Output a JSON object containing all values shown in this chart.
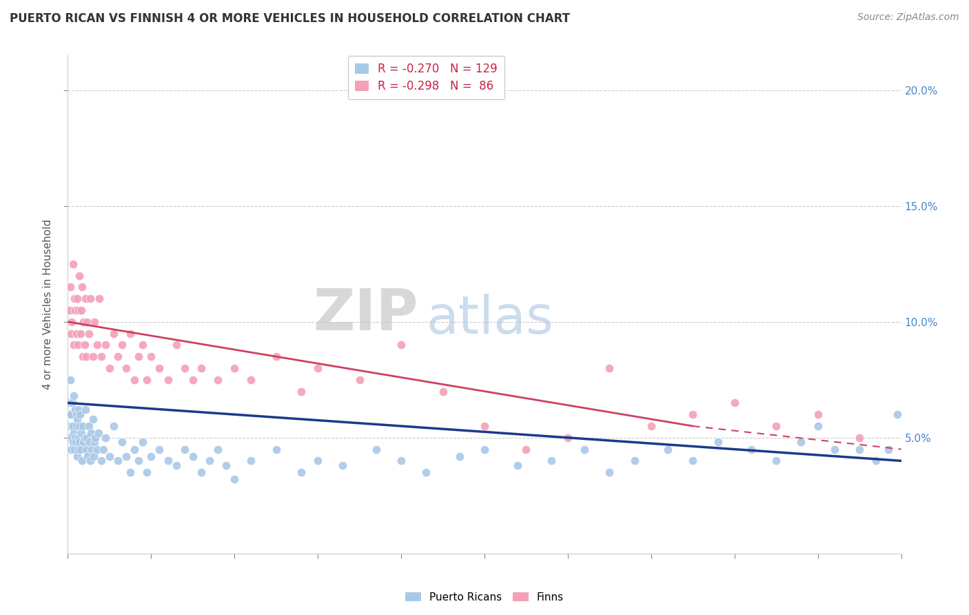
{
  "title": "PUERTO RICAN VS FINNISH 4 OR MORE VEHICLES IN HOUSEHOLD CORRELATION CHART",
  "source": "Source: ZipAtlas.com",
  "ylabel": "4 or more Vehicles in Household",
  "right_ytick_vals": [
    5.0,
    10.0,
    15.0,
    20.0
  ],
  "legend_blue": "R = -0.270   N = 129",
  "legend_pink": "R = -0.298   N =  86",
  "blue_color": "#a8c8e8",
  "pink_color": "#f4a0b8",
  "blue_line_color": "#1a3a8a",
  "pink_line_color": "#d04060",
  "watermark_zip": "ZIP",
  "watermark_atlas": "atlas",
  "xmin": 0.0,
  "xmax": 100.0,
  "ymin": 0.0,
  "ymax": 21.5,
  "figsize": [
    14.06,
    8.92
  ],
  "dpi": 100,
  "blue_scatter_x": [
    0.1,
    0.15,
    0.2,
    0.25,
    0.3,
    0.35,
    0.4,
    0.45,
    0.5,
    0.55,
    0.6,
    0.65,
    0.7,
    0.75,
    0.8,
    0.85,
    0.9,
    0.95,
    1.0,
    1.05,
    1.1,
    1.15,
    1.2,
    1.25,
    1.3,
    1.35,
    1.4,
    1.45,
    1.5,
    1.6,
    1.7,
    1.8,
    1.9,
    2.0,
    2.1,
    2.2,
    2.3,
    2.4,
    2.5,
    2.6,
    2.7,
    2.8,
    2.9,
    3.0,
    3.1,
    3.2,
    3.3,
    3.5,
    3.7,
    4.0,
    4.3,
    4.5,
    5.0,
    5.5,
    6.0,
    6.5,
    7.0,
    7.5,
    8.0,
    8.5,
    9.0,
    9.5,
    10.0,
    11.0,
    12.0,
    13.0,
    14.0,
    15.0,
    16.0,
    17.0,
    18.0,
    19.0,
    20.0,
    22.0,
    25.0,
    28.0,
    30.0,
    33.0,
    37.0,
    40.0,
    43.0,
    47.0,
    50.0,
    54.0,
    58.0,
    62.0,
    65.0,
    68.0,
    72.0,
    75.0,
    78.0,
    82.0,
    85.0,
    88.0,
    90.0,
    92.0,
    95.0,
    97.0,
    98.5,
    99.5
  ],
  "blue_scatter_y": [
    5.5,
    6.5,
    5.0,
    6.0,
    7.5,
    4.5,
    6.0,
    5.5,
    5.0,
    6.5,
    4.8,
    5.5,
    6.8,
    5.2,
    4.5,
    5.0,
    6.2,
    4.8,
    5.5,
    6.0,
    4.2,
    5.8,
    4.5,
    6.2,
    5.0,
    4.8,
    5.5,
    6.0,
    4.5,
    5.2,
    4.0,
    5.5,
    4.8,
    5.0,
    6.2,
    4.5,
    5.0,
    4.2,
    5.5,
    4.8,
    4.0,
    5.2,
    4.5,
    5.8,
    4.2,
    4.8,
    5.0,
    4.5,
    5.2,
    4.0,
    4.5,
    5.0,
    4.2,
    5.5,
    4.0,
    4.8,
    4.2,
    3.5,
    4.5,
    4.0,
    4.8,
    3.5,
    4.2,
    4.5,
    4.0,
    3.8,
    4.5,
    4.2,
    3.5,
    4.0,
    4.5,
    3.8,
    3.2,
    4.0,
    4.5,
    3.5,
    4.0,
    3.8,
    4.5,
    4.0,
    3.5,
    4.2,
    4.5,
    3.8,
    4.0,
    4.5,
    3.5,
    4.0,
    4.5,
    4.0,
    4.8,
    4.5,
    4.0,
    4.8,
    5.5,
    4.5,
    4.5,
    4.0,
    4.5,
    6.0
  ],
  "pink_scatter_x": [
    0.2,
    0.3,
    0.4,
    0.5,
    0.6,
    0.7,
    0.8,
    0.9,
    1.0,
    1.1,
    1.2,
    1.3,
    1.4,
    1.5,
    1.6,
    1.7,
    1.8,
    1.9,
    2.0,
    2.1,
    2.2,
    2.3,
    2.5,
    2.7,
    3.0,
    3.2,
    3.5,
    3.8,
    4.0,
    4.5,
    5.0,
    5.5,
    6.0,
    6.5,
    7.0,
    7.5,
    8.0,
    8.5,
    9.0,
    9.5,
    10.0,
    11.0,
    12.0,
    13.0,
    14.0,
    15.0,
    16.0,
    18.0,
    20.0,
    22.0,
    25.0,
    28.0,
    30.0,
    35.0,
    40.0,
    45.0,
    50.0,
    55.0,
    60.0,
    65.0,
    70.0,
    75.0,
    80.0,
    85.0,
    90.0,
    95.0
  ],
  "pink_scatter_y": [
    10.5,
    11.5,
    9.5,
    10.0,
    12.5,
    9.0,
    11.0,
    10.5,
    9.5,
    11.0,
    9.0,
    10.5,
    12.0,
    9.5,
    10.5,
    11.5,
    8.5,
    10.0,
    9.0,
    11.0,
    8.5,
    10.0,
    9.5,
    11.0,
    8.5,
    10.0,
    9.0,
    11.0,
    8.5,
    9.0,
    8.0,
    9.5,
    8.5,
    9.0,
    8.0,
    9.5,
    7.5,
    8.5,
    9.0,
    7.5,
    8.5,
    8.0,
    7.5,
    9.0,
    8.0,
    7.5,
    8.0,
    7.5,
    8.0,
    7.5,
    8.5,
    7.0,
    8.0,
    7.5,
    9.0,
    7.0,
    5.5,
    4.5,
    5.0,
    8.0,
    5.5,
    6.0,
    6.5,
    5.5,
    6.0,
    5.0
  ],
  "blue_line_x0": 0.0,
  "blue_line_x1": 100.0,
  "blue_line_y0": 6.5,
  "blue_line_y1": 4.0,
  "pink_line_x0": 0.0,
  "pink_line_x1": 75.0,
  "pink_line_x1_dash": 100.0,
  "pink_line_y0": 10.0,
  "pink_line_y1": 5.5,
  "pink_line_y1_dash": 4.5
}
